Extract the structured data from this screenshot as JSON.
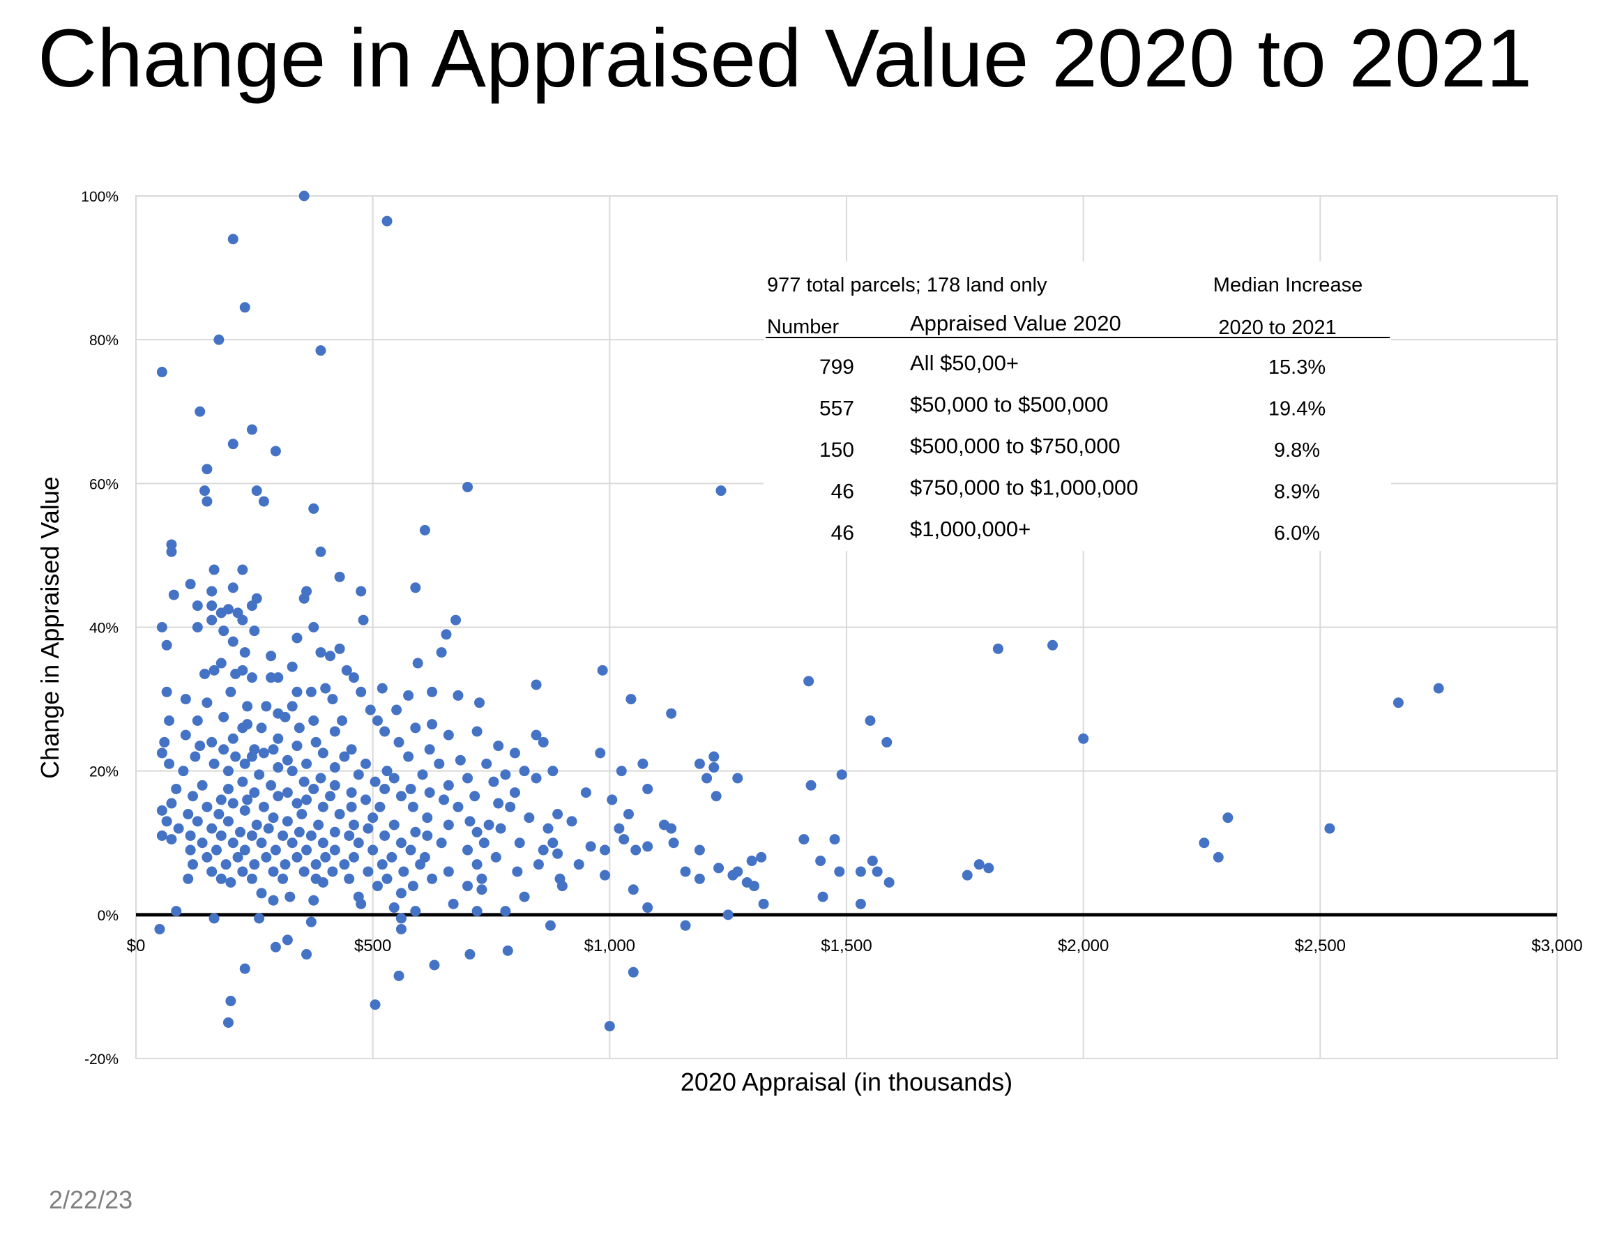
{
  "title": "Change in Appraised Value 2020 to 2021",
  "footer": {
    "date": "2/22/23"
  },
  "colors": {
    "point": "#4472C4",
    "grid": "#d9d9d9",
    "zero_line": "#000000",
    "text": "#000000",
    "footer": "#7f7f7f"
  },
  "chart_data": {
    "type": "scatter",
    "title": "",
    "xlabel": "2020 Appraisal (in thousands)",
    "ylabel": "Change in Appraised Value",
    "xlim": [
      0,
      3000
    ],
    "ylim": [
      -20,
      100
    ],
    "x_ticks": [
      0,
      500,
      1000,
      1500,
      2000,
      2500,
      3000
    ],
    "x_tick_labels": [
      "$0",
      "$500",
      "$1,000",
      "$1,500",
      "$2,000",
      "$2,500",
      "$3,000"
    ],
    "y_ticks": [
      -20,
      0,
      20,
      40,
      60,
      80,
      100
    ],
    "y_tick_labels": [
      "-20%",
      "0%",
      "20%",
      "40%",
      "60%",
      "80%",
      "100%"
    ],
    "grid": true,
    "zero_line": true,
    "table": {
      "note": "977 total parcels; 178 land only",
      "median_header_line1": "Median Increase",
      "headers": [
        "Number",
        "Appraised Value 2020",
        "2020 to 2021"
      ],
      "rows": [
        {
          "number": "799",
          "range": "All $50,00+",
          "median": "15.3%"
        },
        {
          "number": "557",
          "range": "$50,000 to $500,000",
          "median": "19.4%"
        },
        {
          "number": "150",
          "range": "$500,000 to $750,000",
          "median": "9.8%"
        },
        {
          "number": "46",
          "range": "$750,000 to $1,000,000",
          "median": "8.9%"
        },
        {
          "number": "46",
          "range": "$1,000,000+",
          "median": "6.0%"
        }
      ]
    },
    "points": [
      [
        355,
        100
      ],
      [
        530,
        96.5
      ],
      [
        205,
        94
      ],
      [
        230,
        84.5
      ],
      [
        175,
        80
      ],
      [
        390,
        78.5
      ],
      [
        55,
        75.5
      ],
      [
        135,
        70
      ],
      [
        245,
        67.5
      ],
      [
        205,
        65.5
      ],
      [
        295,
        64.5
      ],
      [
        150,
        62
      ],
      [
        145,
        59
      ],
      [
        150,
        57.5
      ],
      [
        255,
        59
      ],
      [
        270,
        57.5
      ],
      [
        700,
        59.5
      ],
      [
        1235,
        59
      ],
      [
        375,
        56.5
      ],
      [
        610,
        53.5
      ],
      [
        75,
        51.5
      ],
      [
        75,
        50.5
      ],
      [
        390,
        50.5
      ],
      [
        430,
        47
      ],
      [
        115,
        46
      ],
      [
        165,
        48
      ],
      [
        225,
        48
      ],
      [
        590,
        45.5
      ],
      [
        80,
        44.5
      ],
      [
        160,
        45
      ],
      [
        205,
        45.5
      ],
      [
        360,
        45
      ],
      [
        355,
        44
      ],
      [
        255,
        44
      ],
      [
        475,
        45
      ],
      [
        160,
        43
      ],
      [
        195,
        42.5
      ],
      [
        215,
        42
      ],
      [
        245,
        43
      ],
      [
        180,
        42
      ],
      [
        130,
        43
      ],
      [
        160,
        41
      ],
      [
        225,
        41
      ],
      [
        480,
        41
      ],
      [
        675,
        41
      ],
      [
        375,
        40
      ],
      [
        250,
        39.5
      ],
      [
        55,
        40
      ],
      [
        130,
        40
      ],
      [
        185,
        39.5
      ],
      [
        340,
        38.5
      ],
      [
        655,
        39
      ],
      [
        430,
        37
      ],
      [
        1820,
        37
      ],
      [
        1935,
        37.5
      ],
      [
        65,
        37.5
      ],
      [
        205,
        38
      ],
      [
        230,
        36.5
      ],
      [
        285,
        36
      ],
      [
        390,
        36.5
      ],
      [
        410,
        36
      ],
      [
        595,
        35
      ],
      [
        645,
        36.5
      ],
      [
        180,
        35
      ],
      [
        225,
        34
      ],
      [
        165,
        34
      ],
      [
        210,
        33.5
      ],
      [
        330,
        34.5
      ],
      [
        445,
        34
      ],
      [
        145,
        33.5
      ],
      [
        460,
        33
      ],
      [
        985,
        34
      ],
      [
        1420,
        32.5
      ],
      [
        845,
        32
      ],
      [
        245,
        33
      ],
      [
        285,
        33
      ],
      [
        300,
        33
      ],
      [
        400,
        31.5
      ],
      [
        520,
        31.5
      ],
      [
        65,
        31
      ],
      [
        200,
        31
      ],
      [
        340,
        31
      ],
      [
        370,
        31
      ],
      [
        415,
        30
      ],
      [
        475,
        31
      ],
      [
        575,
        30.5
      ],
      [
        625,
        31
      ],
      [
        680,
        30.5
      ],
      [
        1045,
        30
      ],
      [
        2665,
        29.5
      ],
      [
        2750,
        31.5
      ],
      [
        105,
        30
      ],
      [
        150,
        29.5
      ],
      [
        235,
        29
      ],
      [
        330,
        29
      ],
      [
        495,
        28.5
      ],
      [
        725,
        29.5
      ],
      [
        1130,
        28
      ],
      [
        275,
        29
      ],
      [
        300,
        28
      ],
      [
        550,
        28.5
      ],
      [
        185,
        27.5
      ],
      [
        315,
        27.5
      ],
      [
        130,
        27
      ],
      [
        235,
        26.5
      ],
      [
        375,
        27
      ],
      [
        435,
        27
      ],
      [
        510,
        27
      ],
      [
        625,
        26.5
      ],
      [
        1550,
        27
      ],
      [
        70,
        27
      ],
      [
        225,
        26
      ],
      [
        265,
        26
      ],
      [
        345,
        26
      ],
      [
        420,
        25.5
      ],
      [
        525,
        25.5
      ],
      [
        590,
        26
      ],
      [
        660,
        25
      ],
      [
        845,
        25
      ],
      [
        2000,
        24.5
      ],
      [
        105,
        25
      ],
      [
        160,
        24
      ],
      [
        205,
        24.5
      ],
      [
        300,
        24.5
      ],
      [
        380,
        24
      ],
      [
        555,
        24
      ],
      [
        720,
        25.5
      ],
      [
        1585,
        24
      ],
      [
        60,
        24
      ],
      [
        135,
        23.5
      ],
      [
        185,
        23
      ],
      [
        250,
        23
      ],
      [
        290,
        23
      ],
      [
        340,
        23.5
      ],
      [
        395,
        22.5
      ],
      [
        455,
        23
      ],
      [
        620,
        23
      ],
      [
        765,
        23.5
      ],
      [
        860,
        24
      ],
      [
        980,
        22.5
      ],
      [
        1220,
        22
      ],
      [
        55,
        22.5
      ],
      [
        125,
        22
      ],
      [
        210,
        22
      ],
      [
        245,
        22
      ],
      [
        270,
        22.5
      ],
      [
        320,
        21.5
      ],
      [
        440,
        22
      ],
      [
        575,
        22
      ],
      [
        685,
        21.5
      ],
      [
        800,
        22.5
      ],
      [
        1070,
        21
      ],
      [
        1190,
        21
      ],
      [
        70,
        21
      ],
      [
        165,
        21
      ],
      [
        230,
        21
      ],
      [
        300,
        20.5
      ],
      [
        360,
        21
      ],
      [
        420,
        20.5
      ],
      [
        485,
        21
      ],
      [
        530,
        20
      ],
      [
        640,
        21
      ],
      [
        740,
        21
      ],
      [
        820,
        20
      ],
      [
        1025,
        20
      ],
      [
        1220,
        20.5
      ],
      [
        1490,
        19.5
      ],
      [
        100,
        20
      ],
      [
        195,
        20
      ],
      [
        260,
        19.5
      ],
      [
        330,
        20
      ],
      [
        390,
        19
      ],
      [
        470,
        19.5
      ],
      [
        545,
        19
      ],
      [
        605,
        19.5
      ],
      [
        700,
        19
      ],
      [
        780,
        19.5
      ],
      [
        880,
        20
      ],
      [
        1205,
        19
      ],
      [
        1270,
        19
      ],
      [
        140,
        18
      ],
      [
        225,
        18.5
      ],
      [
        285,
        18
      ],
      [
        355,
        18.5
      ],
      [
        420,
        18
      ],
      [
        505,
        18.5
      ],
      [
        580,
        17.5
      ],
      [
        660,
        18
      ],
      [
        755,
        18.5
      ],
      [
        845,
        19
      ],
      [
        1425,
        18
      ],
      [
        85,
        17.5
      ],
      [
        195,
        17.5
      ],
      [
        250,
        17
      ],
      [
        320,
        17
      ],
      [
        375,
        17.5
      ],
      [
        455,
        17
      ],
      [
        525,
        17.5
      ],
      [
        620,
        17
      ],
      [
        715,
        16.5
      ],
      [
        800,
        17
      ],
      [
        950,
        17
      ],
      [
        1080,
        17.5
      ],
      [
        1225,
        16.5
      ],
      [
        120,
        16.5
      ],
      [
        180,
        16
      ],
      [
        235,
        16
      ],
      [
        300,
        16.5
      ],
      [
        360,
        16
      ],
      [
        410,
        16.5
      ],
      [
        485,
        16
      ],
      [
        560,
        16.5
      ],
      [
        650,
        16
      ],
      [
        765,
        15.5
      ],
      [
        1005,
        16
      ],
      [
        75,
        15.5
      ],
      [
        150,
        15
      ],
      [
        205,
        15.5
      ],
      [
        270,
        15
      ],
      [
        340,
        15.5
      ],
      [
        395,
        15
      ],
      [
        455,
        15
      ],
      [
        515,
        15
      ],
      [
        585,
        15
      ],
      [
        680,
        15
      ],
      [
        790,
        15
      ],
      [
        890,
        14
      ],
      [
        1040,
        14
      ],
      [
        55,
        14.5
      ],
      [
        110,
        14
      ],
      [
        175,
        14
      ],
      [
        230,
        14.5
      ],
      [
        290,
        13.5
      ],
      [
        350,
        14
      ],
      [
        430,
        14
      ],
      [
        500,
        13.5
      ],
      [
        615,
        13.5
      ],
      [
        705,
        13
      ],
      [
        830,
        13.5
      ],
      [
        2305,
        13.5
      ],
      [
        65,
        13
      ],
      [
        130,
        13
      ],
      [
        195,
        13
      ],
      [
        255,
        12.5
      ],
      [
        320,
        13
      ],
      [
        385,
        12.5
      ],
      [
        460,
        12.5
      ],
      [
        545,
        12.5
      ],
      [
        660,
        12.5
      ],
      [
        745,
        12.5
      ],
      [
        920,
        13
      ],
      [
        1115,
        12.5
      ],
      [
        2520,
        12
      ],
      [
        90,
        12
      ],
      [
        160,
        12
      ],
      [
        220,
        11.5
      ],
      [
        280,
        12
      ],
      [
        345,
        11.5
      ],
      [
        420,
        11.5
      ],
      [
        490,
        12
      ],
      [
        590,
        11.5
      ],
      [
        770,
        12
      ],
      [
        870,
        12
      ],
      [
        1020,
        12
      ],
      [
        1130,
        12
      ],
      [
        55,
        11
      ],
      [
        115,
        11
      ],
      [
        180,
        11
      ],
      [
        245,
        11
      ],
      [
        310,
        11
      ],
      [
        370,
        11
      ],
      [
        450,
        11
      ],
      [
        525,
        11
      ],
      [
        615,
        11
      ],
      [
        720,
        11.5
      ],
      [
        810,
        10
      ],
      [
        1030,
        10.5
      ],
      [
        1410,
        10.5
      ],
      [
        1475,
        10.5
      ],
      [
        2255,
        10
      ],
      [
        75,
        10.5
      ],
      [
        140,
        10
      ],
      [
        205,
        10
      ],
      [
        265,
        10
      ],
      [
        330,
        10
      ],
      [
        395,
        10
      ],
      [
        470,
        10
      ],
      [
        560,
        10
      ],
      [
        645,
        10
      ],
      [
        735,
        10
      ],
      [
        880,
        10
      ],
      [
        960,
        9.5
      ],
      [
        1080,
        9.5
      ],
      [
        1135,
        10
      ],
      [
        115,
        9
      ],
      [
        170,
        9
      ],
      [
        230,
        9
      ],
      [
        295,
        9
      ],
      [
        360,
        9
      ],
      [
        420,
        9
      ],
      [
        500,
        9
      ],
      [
        580,
        9
      ],
      [
        700,
        9
      ],
      [
        860,
        9
      ],
      [
        990,
        9
      ],
      [
        1055,
        9
      ],
      [
        1190,
        9
      ],
      [
        150,
        8
      ],
      [
        215,
        8
      ],
      [
        275,
        8
      ],
      [
        340,
        8
      ],
      [
        400,
        8
      ],
      [
        460,
        8
      ],
      [
        540,
        8
      ],
      [
        610,
        8
      ],
      [
        760,
        8
      ],
      [
        890,
        8.5
      ],
      [
        1320,
        8
      ],
      [
        2285,
        8
      ],
      [
        120,
        7
      ],
      [
        190,
        7
      ],
      [
        250,
        7
      ],
      [
        315,
        7
      ],
      [
        380,
        7
      ],
      [
        440,
        7
      ],
      [
        520,
        7
      ],
      [
        600,
        7
      ],
      [
        720,
        7
      ],
      [
        850,
        7
      ],
      [
        935,
        7
      ],
      [
        1230,
        6.5
      ],
      [
        1300,
        7.5
      ],
      [
        1445,
        7.5
      ],
      [
        1555,
        7.5
      ],
      [
        1780,
        7
      ],
      [
        1800,
        6.5
      ],
      [
        160,
        6
      ],
      [
        225,
        6
      ],
      [
        290,
        6
      ],
      [
        355,
        6
      ],
      [
        415,
        6
      ],
      [
        490,
        6
      ],
      [
        565,
        6
      ],
      [
        660,
        6
      ],
      [
        805,
        6
      ],
      [
        990,
        5.5
      ],
      [
        1160,
        6
      ],
      [
        1260,
        5.5
      ],
      [
        1485,
        6
      ],
      [
        1530,
        6
      ],
      [
        1565,
        6
      ],
      [
        1755,
        5.5
      ],
      [
        110,
        5
      ],
      [
        180,
        5
      ],
      [
        245,
        5
      ],
      [
        310,
        5
      ],
      [
        380,
        5
      ],
      [
        450,
        5
      ],
      [
        530,
        5
      ],
      [
        625,
        5
      ],
      [
        730,
        5
      ],
      [
        895,
        5
      ],
      [
        1190,
        5
      ],
      [
        1270,
        6
      ],
      [
        1590,
        4.5
      ],
      [
        200,
        4.5
      ],
      [
        395,
        4.5
      ],
      [
        510,
        4
      ],
      [
        585,
        4
      ],
      [
        700,
        4
      ],
      [
        900,
        4
      ],
      [
        1050,
        3.5
      ],
      [
        1290,
        4.5
      ],
      [
        1305,
        4
      ],
      [
        265,
        3
      ],
      [
        325,
        2.5
      ],
      [
        470,
        2.5
      ],
      [
        560,
        3
      ],
      [
        730,
        3.5
      ],
      [
        820,
        2.5
      ],
      [
        1450,
        2.5
      ],
      [
        290,
        2
      ],
      [
        375,
        2
      ],
      [
        475,
        1.5
      ],
      [
        545,
        1
      ],
      [
        670,
        1.5
      ],
      [
        1080,
        1
      ],
      [
        1325,
        1.5
      ],
      [
        1530,
        1.5
      ],
      [
        85,
        0.5
      ],
      [
        590,
        0.5
      ],
      [
        720,
        0.5
      ],
      [
        780,
        0.5
      ],
      [
        1250,
        0
      ],
      [
        165,
        -0.5
      ],
      [
        260,
        -0.5
      ],
      [
        370,
        -1
      ],
      [
        560,
        -0.5
      ],
      [
        875,
        -1.5
      ],
      [
        1160,
        -1.5
      ],
      [
        50,
        -2
      ],
      [
        560,
        -2
      ],
      [
        320,
        -3.5
      ],
      [
        295,
        -4.5
      ],
      [
        360,
        -5.5
      ],
      [
        705,
        -5.5
      ],
      [
        785,
        -5
      ],
      [
        230,
        -7.5
      ],
      [
        630,
        -7
      ],
      [
        555,
        -8.5
      ],
      [
        1050,
        -8
      ],
      [
        200,
        -12
      ],
      [
        505,
        -12.5
      ],
      [
        195,
        -15
      ],
      [
        1000,
        -15.5
      ]
    ]
  }
}
